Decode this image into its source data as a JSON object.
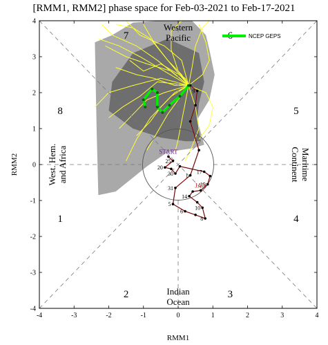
{
  "chart_data": {
    "type": "line",
    "title": "[RMM1, RMM2] phase space for Feb-03-2021 to Feb-17-2021",
    "xlabel": "RMM1",
    "ylabel": "RMM2",
    "xlim": [
      -4,
      4
    ],
    "ylim": [
      -4,
      4
    ],
    "xticks": [
      "-4",
      "-3",
      "-2",
      "-1",
      "0",
      "1",
      "2",
      "3",
      "4"
    ],
    "yticks": [
      "-4",
      "-3",
      "-2",
      "-1",
      "0",
      "1",
      "2",
      "3",
      "4"
    ],
    "grid": false,
    "legend_position": "top-right",
    "phases": [
      {
        "label": "1",
        "x": -3.4,
        "y": -1.5
      },
      {
        "label": "2",
        "x": -1.5,
        "y": -3.6
      },
      {
        "label": "3",
        "x": 1.5,
        "y": -3.6
      },
      {
        "label": "4",
        "x": 3.4,
        "y": -1.5
      },
      {
        "label": "5",
        "x": 3.4,
        "y": 1.5
      },
      {
        "label": "6",
        "x": 1.5,
        "y": 3.6
      },
      {
        "label": "7",
        "x": -1.5,
        "y": 3.6
      },
      {
        "label": "8",
        "x": -3.4,
        "y": 1.5
      }
    ],
    "regions": {
      "western_pacific": [
        "Western",
        "Pacific"
      ],
      "maritime_continent": [
        "Maritime",
        "Continent"
      ],
      "indian_ocean": [
        "Indian",
        "Ocean"
      ],
      "west_hem_africa": [
        "West. Hem.",
        "and Africa"
      ]
    },
    "legend": {
      "label": "NCEP GEPS",
      "color": "#00ee00"
    },
    "observed": {
      "color": "#000000",
      "line_color": "#cc2222",
      "points": [
        {
          "x": -0.28,
          "y": 0.22,
          "label": "START",
          "label_color": "#6a2a8a"
        },
        {
          "x": -0.15,
          "y": 0.1,
          "label": "25"
        },
        {
          "x": -0.38,
          "y": -0.08,
          "label": "20"
        },
        {
          "x": -0.2,
          "y": -0.12,
          "label": ""
        },
        {
          "x": -0.08,
          "y": -0.25,
          "label": "30"
        },
        {
          "x": 0.05,
          "y": -0.05,
          "label": ""
        },
        {
          "x": 0.75,
          "y": -0.2,
          "label": "17"
        },
        {
          "x": 0.92,
          "y": -0.32,
          "label": ""
        },
        {
          "x": 0.85,
          "y": -0.55,
          "label": "15"
        },
        {
          "x": 0.65,
          "y": -0.72,
          "label": "JAN",
          "label_color": "#cc2222"
        },
        {
          "x": 0.42,
          "y": -0.75,
          "label": ""
        },
        {
          "x": 0.32,
          "y": -0.88,
          "label": "14"
        },
        {
          "x": 0.55,
          "y": -1.05,
          "label": ""
        },
        {
          "x": 0.7,
          "y": -1.2,
          "label": "10"
        },
        {
          "x": 0.78,
          "y": -1.5,
          "label": "8"
        },
        {
          "x": 0.5,
          "y": -1.4,
          "label": ""
        },
        {
          "x": 0.2,
          "y": -1.3,
          "label": "6"
        },
        {
          "x": -0.15,
          "y": -1.1,
          "label": "5"
        },
        {
          "x": -0.08,
          "y": -0.65,
          "label": "31"
        },
        {
          "x": 0.35,
          "y": -0.3,
          "label": "1"
        },
        {
          "x": 0.6,
          "y": 0.4,
          "label": ""
        },
        {
          "x": 0.35,
          "y": 1.2,
          "label": ""
        },
        {
          "x": 0.5,
          "y": 1.65,
          "label": ""
        },
        {
          "x": 0.55,
          "y": 2.05,
          "label": "9"
        },
        {
          "x": 0.35,
          "y": 2.2,
          "label": ""
        }
      ]
    },
    "ensemble": {
      "color": "#ffff33",
      "members": [
        [
          [
            0.3,
            2.2
          ],
          [
            0.1,
            2.5
          ],
          [
            -0.3,
            2.9
          ],
          [
            -0.7,
            3.4
          ],
          [
            -1.0,
            3.9
          ]
        ],
        [
          [
            0.3,
            2.2
          ],
          [
            -0.2,
            2.6
          ],
          [
            -0.9,
            2.8
          ],
          [
            -1.5,
            3.0
          ],
          [
            -2.1,
            3.3
          ]
        ],
        [
          [
            0.3,
            2.2
          ],
          [
            0.4,
            2.7
          ],
          [
            0.5,
            3.3
          ],
          [
            0.7,
            3.8
          ],
          [
            0.9,
            4.0
          ]
        ],
        [
          [
            0.3,
            2.2
          ],
          [
            -0.1,
            2.2
          ],
          [
            -0.7,
            2.4
          ],
          [
            -1.2,
            2.5
          ],
          [
            -1.8,
            2.7
          ]
        ],
        [
          [
            0.3,
            2.2
          ],
          [
            -0.4,
            2.0
          ],
          [
            -0.9,
            1.8
          ],
          [
            -1.3,
            1.4
          ],
          [
            -1.7,
            1.0
          ]
        ],
        [
          [
            0.3,
            2.2
          ],
          [
            0.0,
            1.8
          ],
          [
            -0.3,
            1.4
          ],
          [
            -0.6,
            0.9
          ],
          [
            -0.9,
            0.4
          ]
        ],
        [
          [
            0.3,
            2.2
          ],
          [
            0.2,
            1.7
          ],
          [
            0.1,
            1.2
          ],
          [
            0.0,
            0.7
          ],
          [
            -0.1,
            0.3
          ]
        ],
        [
          [
            0.3,
            2.2
          ],
          [
            0.7,
            2.5
          ],
          [
            0.9,
            2.9
          ],
          [
            0.8,
            3.4
          ],
          [
            0.6,
            3.9
          ]
        ],
        [
          [
            0.3,
            2.2
          ],
          [
            -0.6,
            2.9
          ],
          [
            -1.2,
            3.3
          ],
          [
            -1.9,
            3.6
          ],
          [
            -2.2,
            3.9
          ]
        ],
        [
          [
            0.3,
            2.2
          ],
          [
            -0.5,
            2.4
          ],
          [
            -1.3,
            2.2
          ],
          [
            -2.0,
            2.0
          ],
          [
            -2.4,
            1.6
          ]
        ],
        [
          [
            0.3,
            2.2
          ],
          [
            0.0,
            2.6
          ],
          [
            -0.2,
            3.2
          ],
          [
            -0.2,
            3.7
          ],
          [
            0.1,
            4.0
          ]
        ],
        [
          [
            0.3,
            2.2
          ],
          [
            -0.2,
            1.9
          ],
          [
            -0.8,
            1.3
          ],
          [
            -1.2,
            0.7
          ],
          [
            -1.5,
            0.1
          ]
        ],
        [
          [
            0.3,
            2.2
          ],
          [
            0.5,
            1.6
          ],
          [
            0.6,
            1.0
          ],
          [
            0.4,
            0.5
          ],
          [
            0.2,
            0.1
          ]
        ],
        [
          [
            0.3,
            2.2
          ],
          [
            -0.3,
            2.9
          ],
          [
            -0.8,
            3.5
          ],
          [
            -1.3,
            3.8
          ],
          [
            -1.8,
            3.9
          ]
        ],
        [
          [
            0.3,
            2.2
          ],
          [
            -0.6,
            2.3
          ],
          [
            -1.1,
            1.9
          ],
          [
            -1.6,
            1.6
          ],
          [
            -2.0,
            1.3
          ]
        ],
        [
          [
            0.3,
            2.2
          ],
          [
            0.8,
            2.0
          ],
          [
            1.0,
            1.6
          ],
          [
            0.9,
            1.1
          ],
          [
            0.6,
            0.7
          ]
        ],
        [
          [
            0.3,
            2.2
          ],
          [
            0.1,
            2.9
          ],
          [
            -0.4,
            3.3
          ],
          [
            -1.1,
            3.6
          ],
          [
            -1.5,
            4.0
          ]
        ],
        [
          [
            0.3,
            2.2
          ],
          [
            -0.4,
            2.6
          ],
          [
            -1.1,
            3.0
          ],
          [
            -1.7,
            3.3
          ],
          [
            -2.3,
            3.5
          ]
        ],
        [
          [
            0.3,
            2.2
          ],
          [
            -0.1,
            2.0
          ],
          [
            -0.5,
            1.6
          ],
          [
            -0.8,
            1.2
          ],
          [
            -1.2,
            0.8
          ]
        ],
        [
          [
            0.3,
            2.2
          ],
          [
            0.2,
            2.4
          ],
          [
            -0.5,
            2.8
          ],
          [
            -1.0,
            2.6
          ],
          [
            -1.4,
            2.9
          ]
        ]
      ]
    },
    "ensemble_mean": {
      "color": "#00ee00",
      "points": [
        [
          0.3,
          2.2
        ],
        [
          0.05,
          1.9
        ],
        [
          -0.25,
          1.65
        ],
        [
          -0.45,
          1.45
        ],
        [
          -0.6,
          1.6
        ],
        [
          -0.6,
          2.0
        ],
        [
          -0.75,
          2.1
        ],
        [
          -1.0,
          1.8
        ],
        [
          -0.95,
          1.6
        ]
      ]
    },
    "spread": {
      "outer_color": "#a9a9a9",
      "inner_color": "#6e6e6e",
      "outer": [
        [
          -2.4,
          3.4
        ],
        [
          -1.9,
          3.6
        ],
        [
          -1.3,
          3.95
        ],
        [
          -0.5,
          4.0
        ],
        [
          0.4,
          4.0
        ],
        [
          0.8,
          3.6
        ],
        [
          0.9,
          3.2
        ],
        [
          1.05,
          2.5
        ],
        [
          0.9,
          1.8
        ],
        [
          0.55,
          1.25
        ],
        [
          0.75,
          0.55
        ],
        [
          0.4,
          0.45
        ],
        [
          -0.3,
          0.35
        ],
        [
          -0.9,
          -0.05
        ],
        [
          -1.8,
          -0.75
        ],
        [
          -2.3,
          -0.85
        ],
        [
          -2.35,
          1.0
        ]
      ],
      "inner": [
        [
          -1.9,
          2.3
        ],
        [
          -1.3,
          3.1
        ],
        [
          -0.3,
          3.5
        ],
        [
          0.6,
          3.1
        ],
        [
          0.75,
          2.3
        ],
        [
          0.6,
          1.7
        ],
        [
          0.55,
          1.25
        ],
        [
          0.65,
          0.65
        ],
        [
          0.2,
          0.65
        ],
        [
          -0.5,
          0.75
        ],
        [
          -1.3,
          1.0
        ],
        [
          -2.0,
          1.5
        ]
      ]
    }
  }
}
